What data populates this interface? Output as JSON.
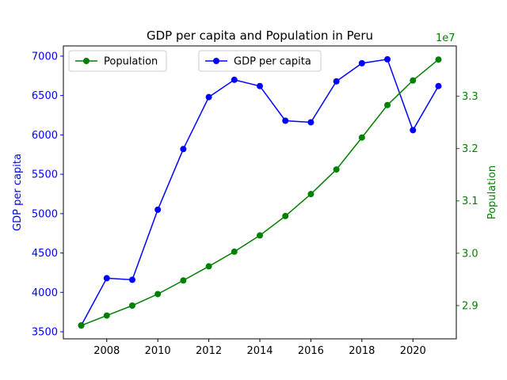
{
  "chart_data": {
    "type": "line",
    "title": "GDP per capita and Population in Peru",
    "x": [
      2007,
      2008,
      2009,
      2010,
      2011,
      2012,
      2013,
      2014,
      2015,
      2016,
      2017,
      2018,
      2019,
      2020,
      2021
    ],
    "xticks": [
      "2008",
      "2010",
      "2012",
      "2014",
      "2016",
      "2018",
      "2020"
    ],
    "xlim": [
      2006.3,
      2021.7
    ],
    "series": [
      {
        "name": "GDP per capita",
        "axis": "left",
        "color": "#0000ff",
        "values": [
          3580,
          4180,
          4160,
          5050,
          5820,
          6480,
          6700,
          6620,
          6180,
          6160,
          6680,
          6910,
          6960,
          6060,
          6620
        ]
      },
      {
        "name": "Population",
        "axis": "right",
        "color": "#008000",
        "values": [
          28620000,
          28810000,
          29000000,
          29220000,
          29480000,
          29750000,
          30030000,
          30340000,
          30710000,
          31130000,
          31600000,
          32210000,
          32830000,
          33300000,
          33700000
        ]
      }
    ],
    "ylabel": "GDP per capita",
    "ylim": [
      3410,
      7130
    ],
    "yticks": [
      "3500",
      "4000",
      "4500",
      "5000",
      "5500",
      "6000",
      "6500",
      "7000"
    ],
    "y2label": "Population",
    "y2lim": [
      28365000,
      33960000
    ],
    "y2ticks": [
      "2.9",
      "3.0",
      "3.1",
      "3.2",
      "3.3"
    ],
    "y2_offset_text": "1e7",
    "legend": [
      {
        "label": "Population",
        "color": "#008000",
        "placement": "upper-left"
      },
      {
        "label": "GDP per capita",
        "color": "#0000ff",
        "placement": "upper-center"
      }
    ],
    "grid": false
  }
}
